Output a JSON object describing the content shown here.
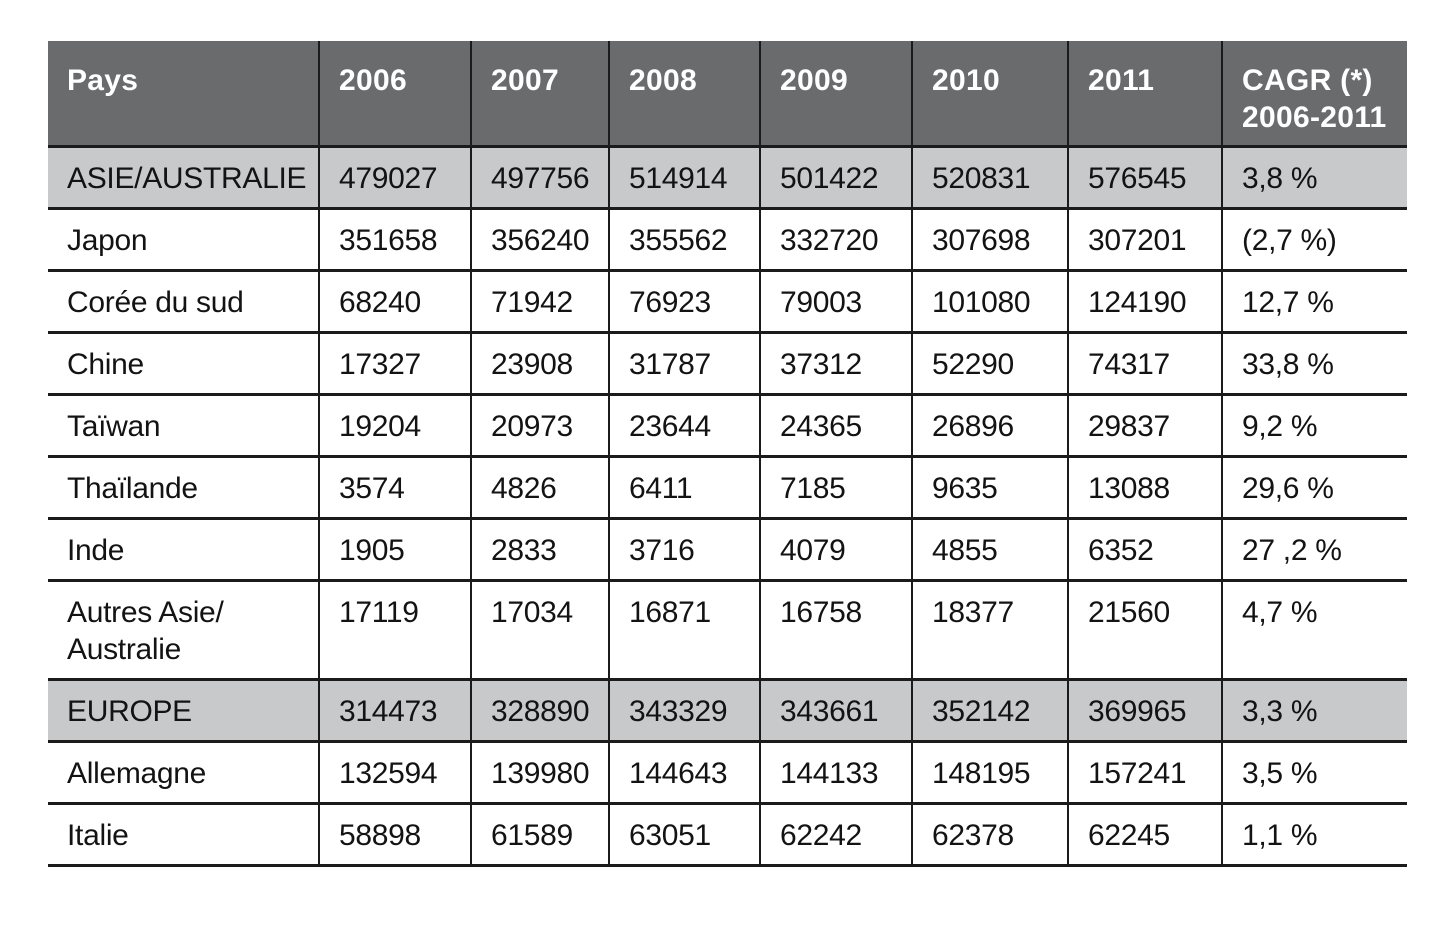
{
  "colors": {
    "header_bg": "#6a6b6d",
    "header_text": "#ffffff",
    "highlight_row_bg": "#c8c9cb",
    "row_bg": "#ffffff",
    "border": "#1b1b1b",
    "text": "#131313"
  },
  "table": {
    "header": {
      "pays": "Pays",
      "years": [
        "2006",
        "2007",
        "2008",
        "2009",
        "2010",
        "2011"
      ],
      "cagr": "CAGR (*)\n2006-2011"
    },
    "rows": [
      {
        "name": "ASIE/AUSTRALIE",
        "highlight": true,
        "values": [
          "479027",
          "497756",
          "514914",
          "501422",
          "520831",
          "576545"
        ],
        "cagr": "3,8 %"
      },
      {
        "name": "Japon",
        "highlight": false,
        "values": [
          "351658",
          "356240",
          "355562",
          "332720",
          "307698",
          "307201"
        ],
        "cagr": "(2,7 %)"
      },
      {
        "name": "Corée du sud",
        "highlight": false,
        "values": [
          "68240",
          "71942",
          "76923",
          "79003",
          "101080",
          "124190"
        ],
        "cagr": "12,7 %"
      },
      {
        "name": "Chine",
        "highlight": false,
        "values": [
          "17327",
          "23908",
          "31787",
          "37312",
          "52290",
          "74317"
        ],
        "cagr": "33,8 %"
      },
      {
        "name": "Taïwan",
        "highlight": false,
        "values": [
          "19204",
          "20973",
          "23644",
          "24365",
          "26896",
          "29837"
        ],
        "cagr": "9,2 %"
      },
      {
        "name": "Thaïlande",
        "highlight": false,
        "values": [
          "3574",
          "4826",
          "6411",
          "7185",
          "9635",
          "13088"
        ],
        "cagr": "29,6 %"
      },
      {
        "name": "Inde",
        "highlight": false,
        "values": [
          "1905",
          "2833",
          "3716",
          "4079",
          "4855",
          "6352"
        ],
        "cagr": "27 ,2 %"
      },
      {
        "name": "Autres Asie/\nAustralie",
        "highlight": false,
        "values": [
          "17119",
          "17034",
          "16871",
          "16758",
          "18377",
          "21560"
        ],
        "cagr": "4,7 %"
      },
      {
        "name": "EUROPE",
        "highlight": true,
        "values": [
          "314473",
          "328890",
          "343329",
          "343661",
          "352142",
          "369965"
        ],
        "cagr": "3,3 %"
      },
      {
        "name": "Allemagne",
        "highlight": false,
        "values": [
          "132594",
          "139980",
          "144643",
          "144133",
          "148195",
          "157241"
        ],
        "cagr": "3,5 %"
      },
      {
        "name": "Italie",
        "highlight": false,
        "values": [
          "58898",
          "61589",
          "63051",
          "62242",
          "62378",
          "62245"
        ],
        "cagr": "1,1 %"
      }
    ]
  }
}
